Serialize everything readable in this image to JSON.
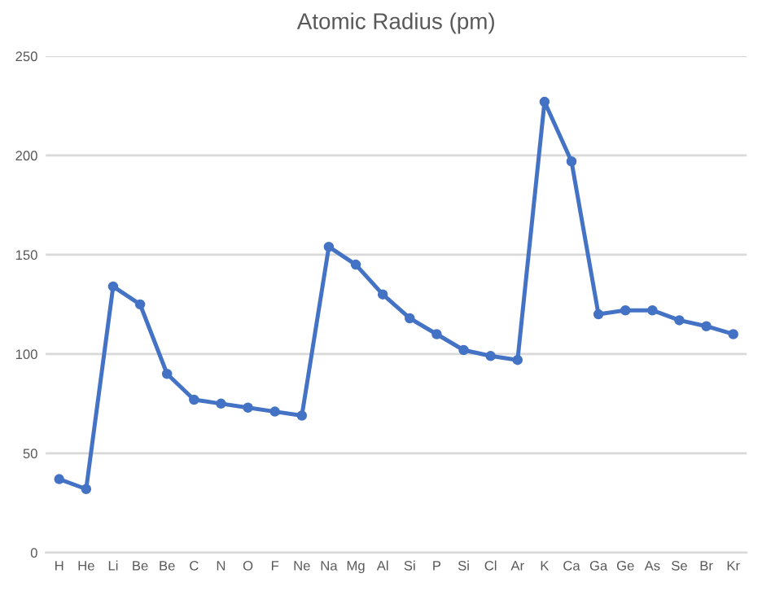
{
  "chart_data": {
    "type": "line",
    "title": "Atomic Radius (pm)",
    "categories": [
      "H",
      "He",
      "Li",
      "Be",
      "Be",
      "C",
      "N",
      "O",
      "F",
      "Ne",
      "Na",
      "Mg",
      "Al",
      "Si",
      "P",
      "Si",
      "Cl",
      "Ar",
      "K",
      "Ca",
      "Ga",
      "Ge",
      "As",
      "Se",
      "Br",
      "Kr"
    ],
    "series": [
      {
        "color": "#4472c4",
        "values": [
          37,
          32,
          134,
          125,
          90,
          77,
          75,
          73,
          71,
          69,
          154,
          145,
          130,
          118,
          110,
          102,
          99,
          97,
          227,
          197,
          120,
          122,
          122,
          117,
          114,
          110
        ]
      }
    ],
    "ylim": [
      0,
      250
    ],
    "yticks": [
      0,
      50,
      100,
      150,
      200,
      250
    ],
    "grid": "y",
    "marker": "circle",
    "line_style": "solid"
  }
}
